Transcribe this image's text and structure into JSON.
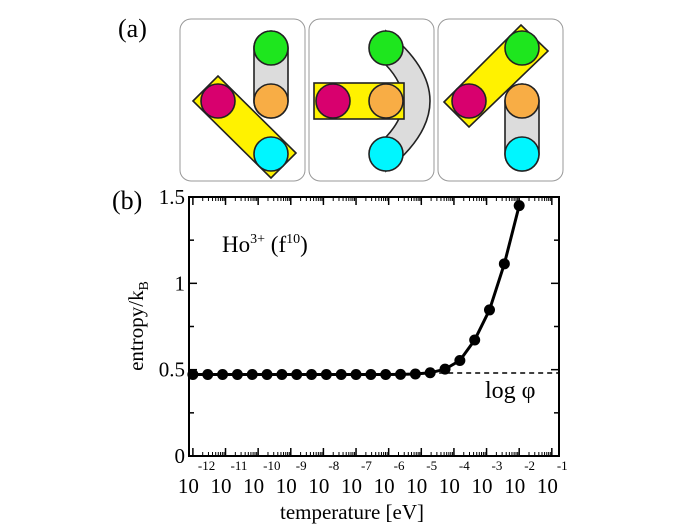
{
  "panel_a": {
    "label": "(a)",
    "colors": {
      "magenta": "#d8006e",
      "orange": "#f8ad45",
      "green": "#1ee61e",
      "cyan": "#00f6ff",
      "yellow": "#fff200",
      "gray": "#dcdcdc"
    }
  },
  "panel_b": {
    "label": "(b)"
  },
  "chart_data": {
    "type": "line",
    "xlabel": "temperature [eV]",
    "ylabel": "entropy/k",
    "ylabel_sub": "B",
    "annotation": {
      "base": "Ho",
      "sup1": "3+",
      "mid": " (f",
      "sup2": "10",
      "end": ")"
    },
    "reference_label": "log φ",
    "reference_value": 0.481,
    "x_scale": "log",
    "xlim": [
      7.6e-13,
      0.166
    ],
    "ylim": [
      0,
      1.5
    ],
    "y_ticks": [
      "0",
      "0.5",
      "1",
      "1.5"
    ],
    "y_tick_values": [
      0,
      0.5,
      1,
      1.5
    ],
    "x_ticks": [
      {
        "base": "10",
        "exp": "-12"
      },
      {
        "base": "10",
        "exp": "-11"
      },
      {
        "base": "10",
        "exp": "-10"
      },
      {
        "base": "10",
        "exp": "-9"
      },
      {
        "base": "10",
        "exp": "-8"
      },
      {
        "base": "10",
        "exp": "-7"
      },
      {
        "base": "10",
        "exp": "-6"
      },
      {
        "base": "10",
        "exp": "-5"
      },
      {
        "base": "10",
        "exp": "-4"
      },
      {
        "base": "10",
        "exp": "-3"
      },
      {
        "base": "10",
        "exp": "-2"
      },
      {
        "base": "10",
        "exp": "-1"
      }
    ],
    "grid": false,
    "series": [
      {
        "marker": "circle",
        "color": "#000000",
        "x": [
          1e-12,
          2.85e-12,
          8.11e-12,
          2.31e-11,
          6.58e-11,
          1.87e-10,
          5.34e-10,
          1.52e-09,
          4.33e-09,
          1.23e-08,
          3.51e-08,
          1e-07,
          2.85e-07,
          8.11e-07,
          2.31e-06,
          6.58e-06,
          1.87e-05,
          5.34e-05,
          0.000152,
          0.000433,
          0.00123,
          0.00351,
          0.01
        ],
        "y": [
          0.472,
          0.472,
          0.472,
          0.472,
          0.472,
          0.472,
          0.472,
          0.472,
          0.472,
          0.472,
          0.472,
          0.472,
          0.472,
          0.472,
          0.473,
          0.475,
          0.482,
          0.503,
          0.553,
          0.672,
          0.846,
          1.113,
          1.45
        ]
      }
    ]
  }
}
